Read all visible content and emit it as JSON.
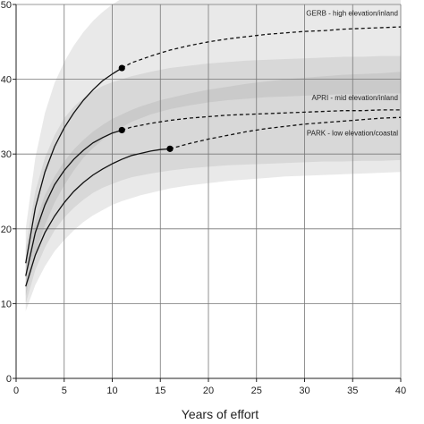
{
  "chart_data": {
    "type": "line",
    "title": "",
    "xlabel": "Years of effort",
    "ylabel": "",
    "xlim": [
      0,
      40
    ],
    "ylim": [
      0,
      50
    ],
    "xticks": [
      0,
      5,
      10,
      15,
      20,
      25,
      30,
      35,
      40
    ],
    "yticks": [
      0,
      10,
      20,
      30,
      40,
      50
    ],
    "grid": true,
    "legend": "none",
    "series": [
      {
        "name": "GERB - high elevation/inland",
        "color": "#111111",
        "observed_end": 11,
        "observed_value": 41.5,
        "x": [
          1,
          2,
          3,
          4,
          5,
          6,
          7,
          8,
          9,
          10,
          11,
          12,
          14,
          16,
          18,
          20,
          22,
          24,
          26,
          28,
          30,
          32,
          34,
          36,
          38,
          40
        ],
        "y": [
          15.4,
          22.8,
          27.6,
          31.0,
          33.5,
          35.5,
          37.2,
          38.6,
          39.8,
          40.7,
          41.5,
          42.2,
          43.1,
          43.9,
          44.5,
          45.0,
          45.4,
          45.7,
          46.0,
          46.2,
          46.4,
          46.5,
          46.7,
          46.8,
          46.9,
          47.0
        ],
        "band_lower": [
          11.0,
          16.5,
          20.5,
          23.5,
          25.8,
          27.8,
          29.5,
          30.8,
          31.9,
          32.8,
          33.6,
          34.3,
          35.3,
          36.0,
          36.5,
          36.9,
          37.2,
          37.4,
          37.6,
          37.7,
          37.8,
          37.9,
          38.0,
          38.0,
          38.1,
          38.1
        ],
        "band_upper": [
          20.0,
          29.5,
          35.5,
          39.5,
          42.3,
          44.5,
          46.3,
          47.8,
          49.0,
          50.0,
          50.8,
          51.5,
          52.6,
          53.4,
          54.0,
          54.5,
          54.9,
          55.2,
          55.5,
          55.7,
          55.9,
          56.0,
          56.1,
          56.2,
          56.3,
          56.4
        ]
      },
      {
        "name": "APRI - mid elevation/inland",
        "color": "#111111",
        "observed_end": 11,
        "observed_value": 33.2,
        "x": [
          1,
          2,
          3,
          4,
          5,
          6,
          7,
          8,
          9,
          10,
          11,
          12,
          14,
          16,
          18,
          20,
          22,
          24,
          26,
          28,
          30,
          32,
          34,
          36,
          38,
          40
        ],
        "y": [
          13.7,
          19.5,
          23.2,
          25.9,
          27.8,
          29.3,
          30.5,
          31.5,
          32.2,
          32.8,
          33.2,
          33.6,
          34.1,
          34.5,
          34.8,
          35.0,
          35.2,
          35.3,
          35.4,
          35.5,
          35.6,
          35.7,
          35.8,
          35.8,
          35.9,
          35.9
        ],
        "band_lower": [
          10.0,
          14.5,
          17.5,
          19.8,
          21.5,
          22.8,
          23.9,
          24.8,
          25.5,
          26.0,
          26.5,
          26.9,
          27.4,
          27.8,
          28.1,
          28.3,
          28.5,
          28.6,
          28.7,
          28.8,
          28.9,
          29.0,
          29.0,
          29.1,
          29.1,
          29.2
        ],
        "band_upper": [
          17.5,
          25.0,
          29.5,
          32.5,
          34.8,
          36.3,
          37.5,
          38.4,
          39.1,
          39.6,
          40.0,
          40.4,
          41.0,
          41.5,
          41.8,
          42.1,
          42.3,
          42.5,
          42.6,
          42.7,
          42.8,
          42.9,
          43.0,
          43.0,
          43.1,
          43.1
        ]
      },
      {
        "name": "PARK - low elevation/coastal",
        "color": "#111111",
        "observed_end": 16,
        "observed_value": 30.7,
        "x": [
          1,
          2,
          3,
          4,
          5,
          6,
          7,
          8,
          9,
          10,
          11,
          12,
          13,
          14,
          15,
          16,
          18,
          20,
          22,
          24,
          26,
          28,
          30,
          32,
          34,
          36,
          38,
          40
        ],
        "y": [
          12.3,
          16.5,
          19.5,
          21.7,
          23.5,
          25.0,
          26.2,
          27.2,
          28.0,
          28.7,
          29.3,
          29.8,
          30.1,
          30.4,
          30.6,
          30.7,
          31.4,
          32.0,
          32.5,
          33.0,
          33.4,
          33.7,
          34.0,
          34.2,
          34.4,
          34.6,
          34.8,
          34.9
        ],
        "band_lower": [
          9.0,
          12.5,
          15.0,
          17.0,
          18.5,
          19.8,
          20.9,
          21.8,
          22.5,
          23.2,
          23.7,
          24.1,
          24.5,
          24.8,
          25.1,
          25.4,
          25.8,
          26.1,
          26.4,
          26.6,
          26.8,
          27.0,
          27.1,
          27.2,
          27.3,
          27.4,
          27.5,
          27.6
        ],
        "band_upper": [
          16.0,
          21.0,
          24.5,
          27.0,
          29.0,
          30.6,
          31.9,
          33.0,
          33.9,
          34.7,
          35.3,
          35.9,
          36.4,
          36.8,
          37.2,
          37.5,
          38.1,
          38.6,
          39.0,
          39.4,
          39.7,
          40.0,
          40.2,
          40.4,
          40.6,
          40.7,
          40.8,
          41.0
        ]
      }
    ],
    "annotations": [
      {
        "text": "GERB - high elevation/inland",
        "x": 40,
        "y": 48.5
      },
      {
        "text": "APRI - mid elevation/inland",
        "x": 40,
        "y": 37.2
      },
      {
        "text": "PARK - low elevation/coastal",
        "x": 40,
        "y": 32.5
      }
    ]
  }
}
